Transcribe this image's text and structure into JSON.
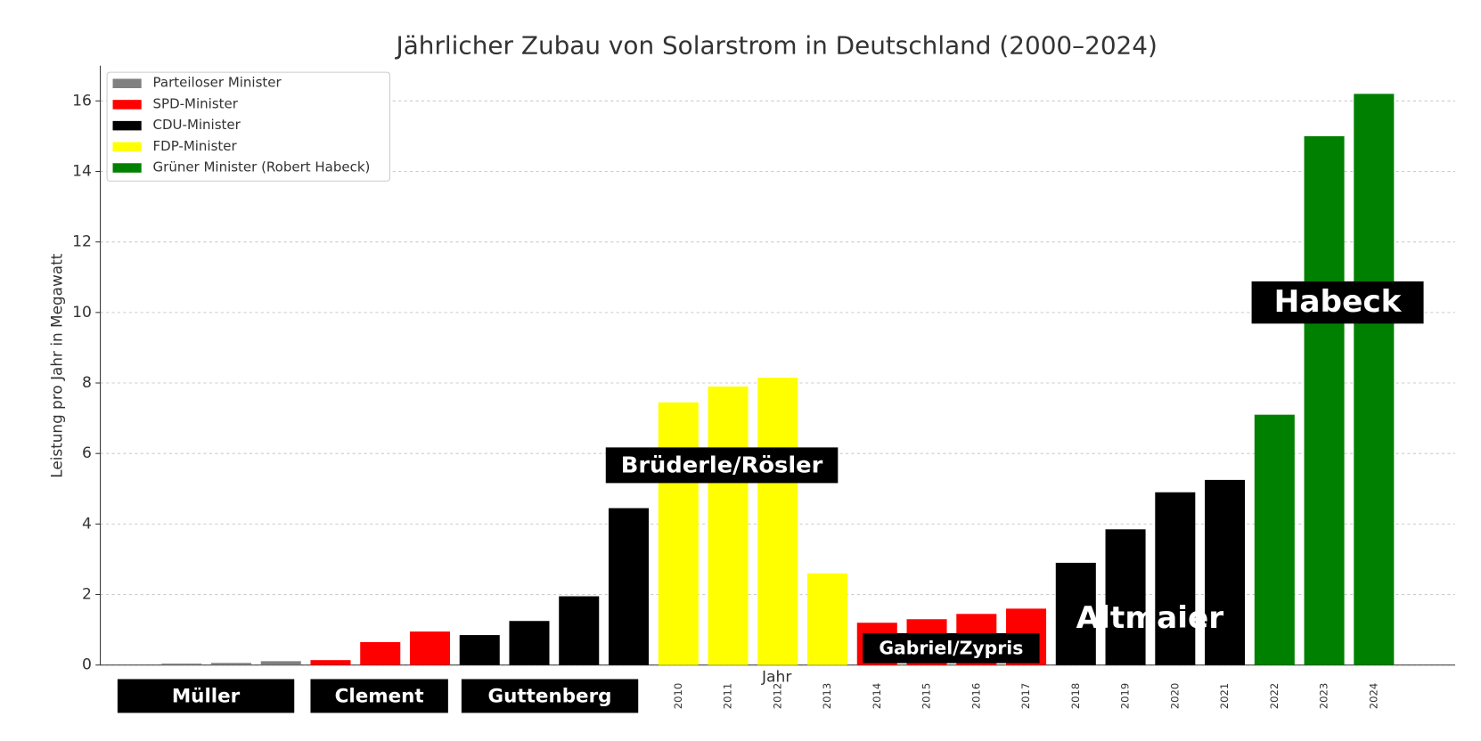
{
  "chart_data": {
    "type": "bar",
    "title": "Jährlicher Zubau von Solarstrom in Deutschland (2000–2024)",
    "x_label": "Jahr",
    "y_label": "Leistung pro Jahr in Megawatt",
    "categories": [
      null,
      null,
      null,
      null,
      null,
      null,
      null,
      null,
      null,
      null,
      "2010",
      "2011",
      "2012",
      "2013",
      "2014",
      "2015",
      "2016",
      "2017",
      "2018",
      "2019",
      "2020",
      "2021",
      "2022",
      "2023",
      "2024"
    ],
    "values": [
      0.04,
      0.06,
      0.11,
      0.14,
      0.65,
      0.95,
      0.85,
      1.25,
      1.95,
      4.45,
      7.45,
      7.9,
      8.15,
      2.6,
      1.2,
      1.3,
      1.45,
      1.6,
      2.9,
      3.85,
      4.9,
      5.25,
      7.1,
      15.0,
      16.2
    ],
    "colors": [
      "#808080",
      "#808080",
      "#808080",
      "#ff0000",
      "#ff0000",
      "#ff0000",
      "#000000",
      "#000000",
      "#000000",
      "#000000",
      "#ffff00",
      "#ffff00",
      "#ffff00",
      "#ffff00",
      "#ff0000",
      "#ff0000",
      "#ff0000",
      "#ff0000",
      "#000000",
      "#000000",
      "#000000",
      "#000000",
      "#008000",
      "#008000",
      "#008000"
    ],
    "legend": [
      {
        "name": "Parteiloser Minister",
        "color": "#808080"
      },
      {
        "name": "SPD-Minister",
        "color": "#ff0000"
      },
      {
        "name": "CDU-Minister",
        "color": "#000000"
      },
      {
        "name": "FDP-Minister",
        "color": "#ffff00"
      },
      {
        "name": "Grüner Minister (Robert Habeck)",
        "color": "#008000"
      }
    ],
    "legend_position": "upper left",
    "annotations": [
      "Müller",
      "Clement",
      "Guttenberg",
      "Brüderle/Rösler",
      "Gabriel/Zypris",
      "Altmaier",
      "Habeck"
    ],
    "ylim": [
      0,
      17
    ],
    "yticks": [
      0,
      2,
      4,
      6,
      8,
      10,
      12,
      14,
      16
    ],
    "grid": true
  }
}
